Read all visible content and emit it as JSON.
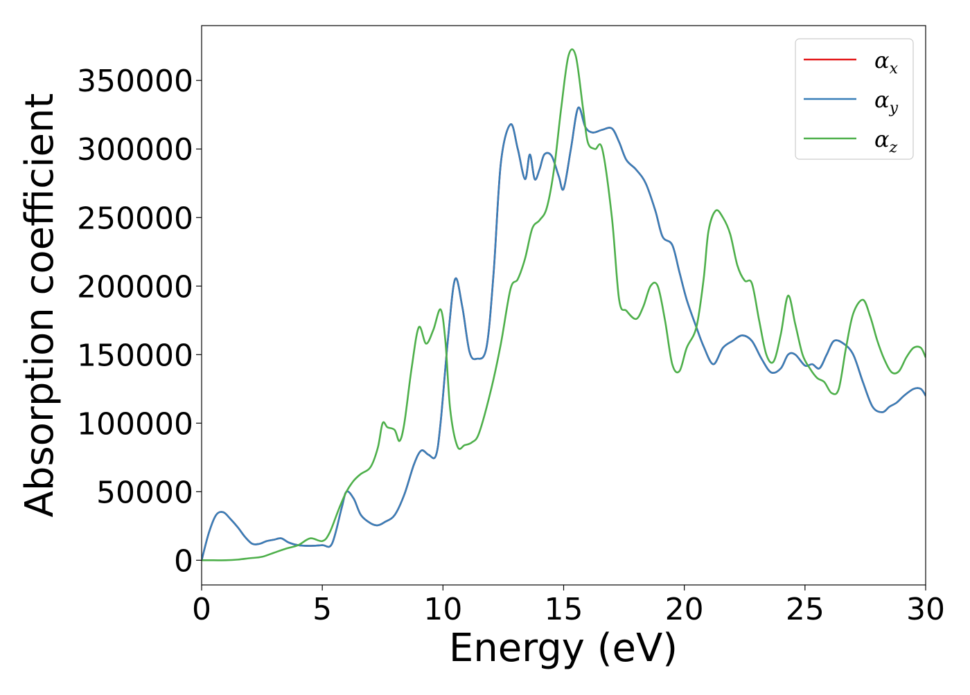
{
  "chart_data": {
    "type": "line",
    "title": "",
    "xlabel": "Energy (eV)",
    "ylabel": "Absorption coefficient",
    "xlim": [
      0,
      30
    ],
    "ylim": [
      -18000,
      390000
    ],
    "xticks": [
      0,
      5,
      10,
      15,
      20,
      25,
      30
    ],
    "yticks": [
      0,
      50000,
      100000,
      150000,
      200000,
      250000,
      300000,
      350000
    ],
    "grid": false,
    "legend_position": "top-right",
    "series": [
      {
        "name": "αx",
        "legend_base": "α",
        "legend_sub": "x",
        "color": "#e41a1c",
        "x": [
          0,
          0.3,
          0.6,
          0.9,
          1.2,
          1.5,
          1.8,
          2.1,
          2.4,
          2.7,
          3.0,
          3.3,
          3.6,
          4.0,
          4.5,
          5.0,
          5.4,
          5.8,
          6.0,
          6.3,
          6.6,
          7.0,
          7.3,
          7.6,
          8.0,
          8.4,
          8.8,
          9.1,
          9.4,
          9.7,
          9.9,
          10.2,
          10.5,
          10.8,
          11.1,
          11.4,
          11.8,
          12.1,
          12.4,
          12.8,
          13.1,
          13.4,
          13.6,
          13.8,
          14.0,
          14.2,
          14.5,
          14.8,
          15.0,
          15.3,
          15.6,
          15.9,
          16.2,
          16.6,
          17.0,
          17.3,
          17.6,
          18.0,
          18.4,
          18.8,
          19.1,
          19.5,
          19.8,
          20.1,
          20.5,
          20.8,
          21.2,
          21.6,
          22.0,
          22.4,
          22.8,
          23.2,
          23.6,
          24.0,
          24.3,
          24.6,
          25.0,
          25.3,
          25.6,
          25.9,
          26.2,
          26.6,
          27.0,
          27.4,
          27.8,
          28.2,
          28.5,
          28.8,
          29.1,
          29.5,
          29.8,
          30.0
        ],
        "y": [
          0,
          20000,
          33000,
          35000,
          30000,
          24000,
          17000,
          12000,
          12000,
          14000,
          15000,
          16000,
          13000,
          11000,
          10500,
          11000,
          12000,
          38000,
          50000,
          45000,
          33000,
          27000,
          25500,
          28000,
          33000,
          48000,
          70000,
          80000,
          77000,
          76000,
          100000,
          160000,
          205000,
          185000,
          152000,
          147000,
          155000,
          210000,
          290000,
          318000,
          300000,
          278000,
          296000,
          278000,
          285000,
          296000,
          295000,
          280000,
          271000,
          300000,
          330000,
          316000,
          312000,
          314000,
          315000,
          305000,
          292000,
          285000,
          275000,
          255000,
          236000,
          230000,
          210000,
          190000,
          170000,
          156000,
          143000,
          155000,
          160000,
          164000,
          160000,
          147000,
          137000,
          140000,
          150000,
          150000,
          142000,
          143000,
          140000,
          150000,
          160000,
          158000,
          150000,
          130000,
          112000,
          108000,
          112000,
          115000,
          120000,
          125000,
          125000,
          120000
        ]
      },
      {
        "name": "αy",
        "legend_base": "α",
        "legend_sub": "y",
        "color": "#377eb8",
        "x": [
          0,
          0.3,
          0.6,
          0.9,
          1.2,
          1.5,
          1.8,
          2.1,
          2.4,
          2.7,
          3.0,
          3.3,
          3.6,
          4.0,
          4.5,
          5.0,
          5.4,
          5.8,
          6.0,
          6.3,
          6.6,
          7.0,
          7.3,
          7.6,
          8.0,
          8.4,
          8.8,
          9.1,
          9.4,
          9.7,
          9.9,
          10.2,
          10.5,
          10.8,
          11.1,
          11.4,
          11.8,
          12.1,
          12.4,
          12.8,
          13.1,
          13.4,
          13.6,
          13.8,
          14.0,
          14.2,
          14.5,
          14.8,
          15.0,
          15.3,
          15.6,
          15.9,
          16.2,
          16.6,
          17.0,
          17.3,
          17.6,
          18.0,
          18.4,
          18.8,
          19.1,
          19.5,
          19.8,
          20.1,
          20.5,
          20.8,
          21.2,
          21.6,
          22.0,
          22.4,
          22.8,
          23.2,
          23.6,
          24.0,
          24.3,
          24.6,
          25.0,
          25.3,
          25.6,
          25.9,
          26.2,
          26.6,
          27.0,
          27.4,
          27.8,
          28.2,
          28.5,
          28.8,
          29.1,
          29.5,
          29.8,
          30.0
        ],
        "y": [
          0,
          20000,
          33000,
          35000,
          30000,
          24000,
          17000,
          12000,
          12000,
          14000,
          15000,
          16000,
          13000,
          11000,
          10500,
          11000,
          12000,
          38000,
          50000,
          45000,
          33000,
          27000,
          25500,
          28000,
          33000,
          48000,
          70000,
          80000,
          77000,
          76000,
          100000,
          160000,
          205000,
          185000,
          152000,
          147000,
          155000,
          210000,
          290000,
          318000,
          300000,
          278000,
          296000,
          278000,
          285000,
          296000,
          295000,
          280000,
          271000,
          300000,
          330000,
          316000,
          312000,
          314000,
          315000,
          305000,
          292000,
          285000,
          275000,
          255000,
          236000,
          230000,
          210000,
          190000,
          170000,
          156000,
          143000,
          155000,
          160000,
          164000,
          160000,
          147000,
          137000,
          140000,
          150000,
          150000,
          142000,
          143000,
          140000,
          150000,
          160000,
          158000,
          150000,
          130000,
          112000,
          108000,
          112000,
          115000,
          120000,
          125000,
          125000,
          120000
        ]
      },
      {
        "name": "αz",
        "legend_base": "α",
        "legend_sub": "z",
        "color": "#4daf4a",
        "x": [
          0,
          0.5,
          1.0,
          1.5,
          2.0,
          2.5,
          3.0,
          3.5,
          4.0,
          4.5,
          5.0,
          5.3,
          5.7,
          6.0,
          6.3,
          6.6,
          7.0,
          7.3,
          7.5,
          7.7,
          8.0,
          8.2,
          8.4,
          8.7,
          9.0,
          9.3,
          9.6,
          9.9,
          10.1,
          10.3,
          10.6,
          10.9,
          11.2,
          11.5,
          12.0,
          12.4,
          12.8,
          13.1,
          13.4,
          13.7,
          14.0,
          14.3,
          14.6,
          14.9,
          15.2,
          15.5,
          15.8,
          16.0,
          16.3,
          16.6,
          17.0,
          17.3,
          17.6,
          18.0,
          18.3,
          18.6,
          18.9,
          19.2,
          19.5,
          19.8,
          20.1,
          20.5,
          20.8,
          21.0,
          21.3,
          21.6,
          21.9,
          22.2,
          22.5,
          22.8,
          23.1,
          23.4,
          23.7,
          24.0,
          24.3,
          24.6,
          24.9,
          25.2,
          25.5,
          25.8,
          26.1,
          26.4,
          26.7,
          27.0,
          27.4,
          27.7,
          28.0,
          28.3,
          28.6,
          28.9,
          29.2,
          29.5,
          29.8,
          30.0
        ],
        "y": [
          0,
          0,
          0,
          500,
          1500,
          2500,
          5500,
          8500,
          11000,
          16000,
          14000,
          20000,
          38000,
          50000,
          58000,
          63000,
          68000,
          82000,
          100000,
          97000,
          95000,
          87000,
          100000,
          140000,
          170000,
          158000,
          168000,
          183000,
          160000,
          110000,
          83000,
          84000,
          86000,
          93000,
          125000,
          158000,
          198000,
          205000,
          220000,
          242000,
          248000,
          257000,
          285000,
          330000,
          368000,
          368000,
          330000,
          305000,
          300000,
          300000,
          250000,
          190000,
          182000,
          176000,
          185000,
          200000,
          200000,
          175000,
          143000,
          138000,
          155000,
          170000,
          205000,
          240000,
          255000,
          250000,
          238000,
          215000,
          204000,
          202000,
          175000,
          150000,
          145000,
          165000,
          193000,
          172000,
          150000,
          140000,
          133000,
          130000,
          122000,
          125000,
          155000,
          180000,
          190000,
          178000,
          160000,
          146000,
          137000,
          138000,
          148000,
          155000,
          155000,
          148000
        ]
      }
    ]
  }
}
